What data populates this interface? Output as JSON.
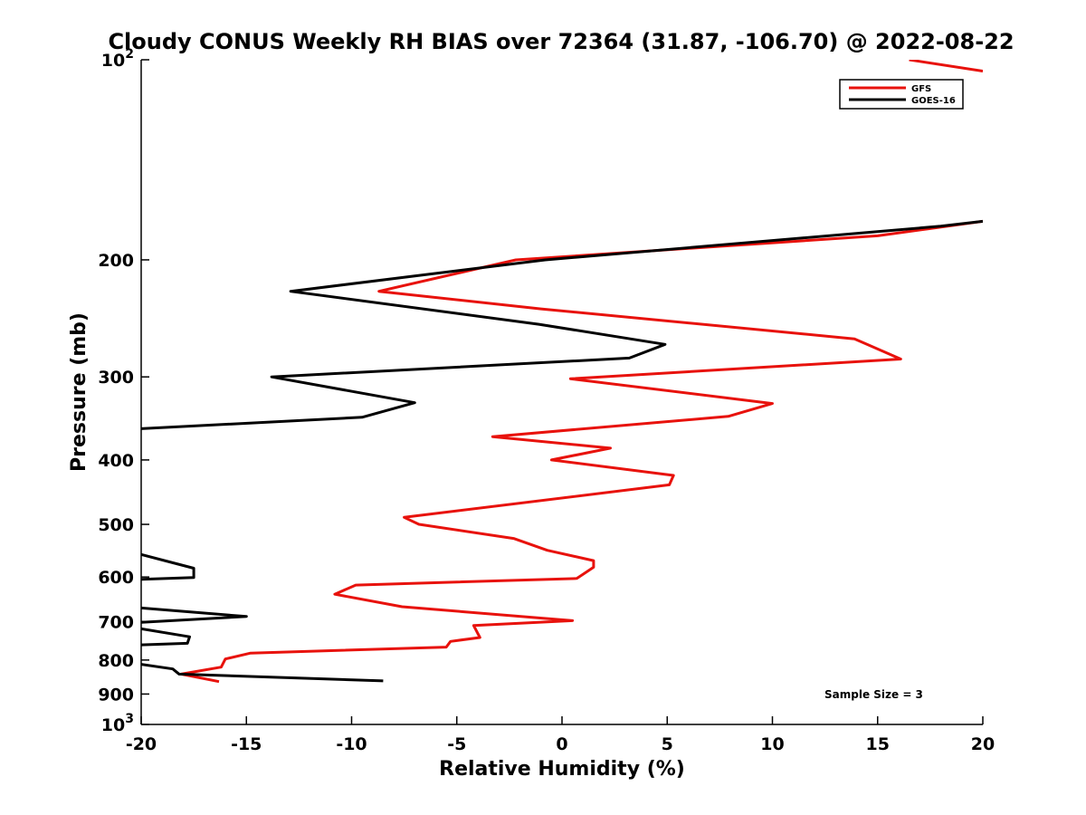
{
  "chart_data": {
    "type": "line",
    "title": "Cloudy CONUS Weekly RH BIAS over 72364 (31.87, -106.70) @ 2022-08-22",
    "xlabel": "Relative Humidity (%)",
    "ylabel": "Pressure (mb)",
    "xlim": [
      -20,
      20
    ],
    "ylim": [
      100,
      1000
    ],
    "y_scale": "log",
    "y_reversed": true,
    "x_ticks": [
      "-20",
      "-15",
      "-10",
      "-5",
      "0",
      "5",
      "10",
      "15",
      "20"
    ],
    "y_ticks": [
      {
        "value": 100,
        "base": "10",
        "exp": "2"
      },
      {
        "value": 200,
        "label": "200"
      },
      {
        "value": 300,
        "label": "300"
      },
      {
        "value": 400,
        "label": "400"
      },
      {
        "value": 500,
        "label": "500"
      },
      {
        "value": 600,
        "label": "600"
      },
      {
        "value": 700,
        "label": "700"
      },
      {
        "value": 800,
        "label": "800"
      },
      {
        "value": 900,
        "label": "900"
      },
      {
        "value": 1000,
        "base": "10",
        "exp": "3"
      }
    ],
    "grid": false,
    "legend_position": "top-right",
    "annotation": "Sample Size = 3",
    "series": [
      {
        "name": "GFS",
        "color": "#e8120c",
        "segments": [
          [
            [
              16.5,
              100
            ],
            [
              20,
              104
            ]
          ],
          [
            [
              20,
              175
            ],
            [
              15,
              184
            ],
            [
              -2.2,
              200
            ],
            [
              -8.7,
              223
            ],
            [
              -1,
              237
            ],
            [
              13.9,
              263
            ],
            [
              16.1,
              282
            ],
            [
              0.4,
              302
            ],
            [
              10,
              329
            ],
            [
              7.9,
              344
            ],
            [
              -3.3,
              369
            ],
            [
              2.3,
              384
            ],
            [
              -0.5,
              400
            ],
            [
              5.3,
              422
            ],
            [
              5.1,
              436
            ],
            [
              -7.5,
              488
            ],
            [
              -6.8,
              500
            ],
            [
              -2.3,
              525
            ],
            [
              -0.7,
              547
            ],
            [
              1.5,
              567
            ],
            [
              1.5,
              580
            ],
            [
              0.7,
              603
            ],
            [
              -9.8,
              617
            ],
            [
              -10.8,
              637
            ],
            [
              -7.6,
              665
            ],
            [
              0.5,
              698
            ],
            [
              -4.2,
              710
            ],
            [
              -3.9,
              740
            ],
            [
              -5.3,
              750
            ],
            [
              -5.5,
              765
            ],
            [
              -14.8,
              781
            ],
            [
              -16,
              797
            ],
            [
              -16.2,
              820
            ],
            [
              -18.1,
              840
            ],
            [
              -16.3,
              862
            ]
          ]
        ]
      },
      {
        "name": "GOES-16",
        "color": "#000000",
        "segments": [
          [
            [
              20,
              175
            ],
            [
              18,
              178
            ],
            [
              -0.8,
              200
            ],
            [
              -12.9,
              223
            ],
            [
              -1.1,
              250
            ],
            [
              4.9,
              268
            ],
            [
              3.2,
              281
            ],
            [
              -13.8,
              300
            ],
            [
              -7,
              328
            ],
            [
              -9.5,
              345
            ],
            [
              -20,
              359
            ]
          ],
          [
            [
              -20,
              555
            ],
            [
              -17.5,
              582
            ],
            [
              -17.5,
              601
            ],
            [
              -20,
              605
            ]
          ],
          [
            [
              -20,
              668
            ],
            [
              -15,
              688
            ],
            [
              -20,
              702
            ]
          ],
          [
            [
              -20,
              718
            ],
            [
              -17.7,
              738
            ],
            [
              -17.8,
              755
            ],
            [
              -20,
              759
            ]
          ],
          [
            [
              -20,
              812
            ],
            [
              -18.5,
              825
            ],
            [
              -18.2,
              840
            ],
            [
              -8.5,
              860
            ]
          ]
        ]
      }
    ]
  }
}
